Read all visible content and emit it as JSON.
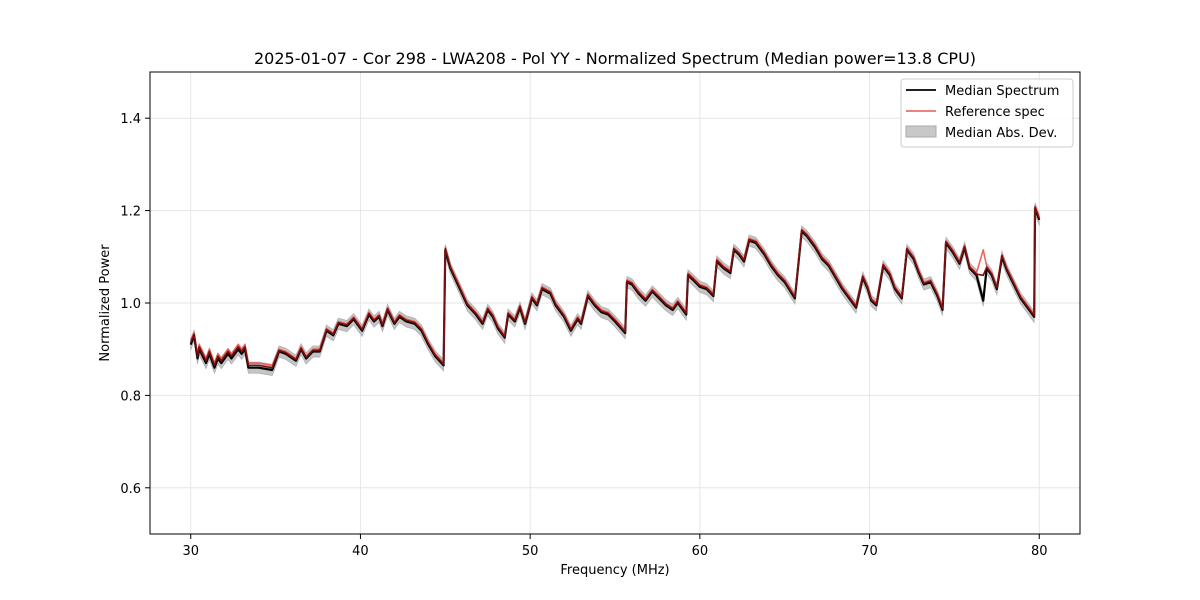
{
  "chart_data": {
    "type": "line",
    "title": "2025-01-07 - Cor 298 - LWA208 - Pol YY - Normalized Spectrum (Median power=13.8 CPU)",
    "xlabel": "Frequency (MHz)",
    "ylabel": "Normalized Power",
    "xlim": [
      27.6,
      82.4
    ],
    "ylim": [
      0.5,
      1.5
    ],
    "xticks": [
      30,
      40,
      50,
      60,
      70,
      80
    ],
    "yticks": [
      0.6,
      0.8,
      1.0,
      1.2,
      1.4
    ],
    "xtick_labels": [
      "30",
      "40",
      "50",
      "60",
      "70",
      "80"
    ],
    "ytick_labels": [
      "0.6",
      "0.8",
      "1.0",
      "1.2",
      "1.4"
    ],
    "grid": true,
    "legend_position": "top-right",
    "series": [
      {
        "name": "Median Spectrum",
        "color": "#000000",
        "x": [
          30.0,
          30.2,
          30.4,
          30.5,
          30.9,
          31.1,
          31.4,
          31.6,
          31.8,
          32.2,
          32.4,
          32.8,
          33.0,
          33.2,
          33.4,
          34.0,
          34.8,
          35.2,
          35.6,
          36.0,
          36.2,
          36.5,
          36.8,
          37.2,
          37.6,
          38.0,
          38.4,
          38.7,
          39.2,
          39.6,
          40.1,
          40.5,
          40.8,
          41.1,
          41.3,
          41.6,
          42.0,
          42.3,
          42.7,
          43.2,
          43.6,
          44.0,
          44.4,
          44.9,
          45.0,
          45.3,
          45.8,
          46.3,
          46.8,
          47.2,
          47.5,
          47.8,
          48.1,
          48.5,
          48.7,
          49.1,
          49.4,
          49.7,
          50.1,
          50.4,
          50.7,
          51.2,
          51.5,
          52.0,
          52.4,
          52.8,
          53.0,
          53.4,
          53.8,
          54.2,
          54.6,
          55.0,
          55.6,
          55.7,
          56.0,
          56.4,
          56.8,
          57.2,
          57.6,
          58.0,
          58.4,
          58.7,
          58.9,
          59.2,
          59.3,
          59.6,
          60.0,
          60.4,
          60.8,
          61.0,
          61.4,
          61.8,
          62.0,
          62.3,
          62.6,
          62.9,
          63.3,
          63.8,
          64.2,
          64.6,
          65.0,
          65.6,
          66.0,
          66.3,
          66.8,
          67.2,
          67.6,
          68.0,
          68.4,
          68.8,
          69.2,
          69.6,
          69.9,
          70.1,
          70.4,
          70.8,
          71.2,
          71.5,
          71.9,
          72.2,
          72.6,
          72.9,
          73.2,
          73.6,
          74.0,
          74.3,
          74.5,
          74.9,
          75.3,
          75.6,
          75.9,
          76.3,
          76.7,
          76.9,
          77.2,
          77.5,
          77.8,
          78.1,
          78.5,
          78.9,
          79.3,
          79.7,
          79.75,
          80.0
        ],
        "values": [
          0.91,
          0.93,
          0.88,
          0.9,
          0.87,
          0.89,
          0.86,
          0.88,
          0.87,
          0.89,
          0.88,
          0.9,
          0.89,
          0.9,
          0.86,
          0.86,
          0.855,
          0.895,
          0.89,
          0.88,
          0.875,
          0.9,
          0.88,
          0.895,
          0.895,
          0.94,
          0.93,
          0.955,
          0.95,
          0.965,
          0.94,
          0.975,
          0.96,
          0.97,
          0.95,
          0.985,
          0.955,
          0.97,
          0.96,
          0.955,
          0.94,
          0.91,
          0.885,
          0.865,
          1.115,
          1.075,
          1.035,
          0.995,
          0.975,
          0.955,
          0.985,
          0.97,
          0.945,
          0.925,
          0.975,
          0.96,
          0.99,
          0.955,
          1.01,
          0.995,
          1.03,
          1.02,
          0.995,
          0.97,
          0.94,
          0.965,
          0.955,
          1.015,
          0.995,
          0.98,
          0.975,
          0.96,
          0.935,
          1.045,
          1.04,
          1.02,
          1.005,
          1.025,
          1.01,
          0.995,
          0.985,
          1.0,
          0.99,
          0.975,
          1.06,
          1.05,
          1.035,
          1.03,
          1.015,
          1.09,
          1.075,
          1.065,
          1.115,
          1.105,
          1.09,
          1.135,
          1.13,
          1.105,
          1.08,
          1.06,
          1.045,
          1.01,
          1.155,
          1.145,
          1.12,
          1.095,
          1.08,
          1.055,
          1.03,
          1.01,
          0.99,
          1.055,
          1.03,
          1.005,
          0.995,
          1.08,
          1.06,
          1.03,
          1.01,
          1.115,
          1.095,
          1.065,
          1.04,
          1.045,
          1.015,
          0.985,
          1.13,
          1.11,
          1.085,
          1.12,
          1.075,
          1.06,
          1.005,
          1.075,
          1.06,
          1.03,
          1.1,
          1.07,
          1.04,
          1.01,
          0.99,
          0.97,
          1.205,
          1.18
        ]
      },
      {
        "name": "Reference spec",
        "color": "#e8584f",
        "x": [
          30.0,
          30.2,
          30.4,
          30.5,
          30.9,
          31.1,
          31.4,
          31.6,
          31.8,
          32.2,
          32.4,
          32.8,
          33.0,
          33.2,
          33.4,
          34.0,
          34.8,
          35.2,
          35.6,
          36.0,
          36.2,
          36.5,
          36.8,
          37.2,
          37.6,
          38.0,
          38.4,
          38.7,
          39.2,
          39.6,
          40.1,
          40.5,
          40.8,
          41.1,
          41.3,
          41.6,
          42.0,
          42.3,
          42.7,
          43.2,
          43.6,
          44.0,
          44.4,
          44.9,
          45.0,
          45.3,
          45.8,
          46.3,
          46.8,
          47.2,
          47.5,
          47.8,
          48.1,
          48.5,
          48.7,
          49.1,
          49.4,
          49.7,
          50.1,
          50.4,
          50.7,
          51.2,
          51.5,
          52.0,
          52.4,
          52.8,
          53.0,
          53.4,
          53.8,
          54.2,
          54.6,
          55.0,
          55.6,
          55.7,
          56.0,
          56.4,
          56.8,
          57.2,
          57.6,
          58.0,
          58.4,
          58.7,
          58.9,
          59.2,
          59.3,
          59.6,
          60.0,
          60.4,
          60.8,
          61.0,
          61.4,
          61.8,
          62.0,
          62.3,
          62.6,
          62.9,
          63.3,
          63.8,
          64.2,
          64.6,
          65.0,
          65.6,
          66.0,
          66.3,
          66.8,
          67.2,
          67.6,
          68.0,
          68.4,
          68.8,
          69.2,
          69.6,
          69.9,
          70.1,
          70.4,
          70.8,
          71.2,
          71.5,
          71.9,
          72.2,
          72.6,
          72.9,
          73.2,
          73.6,
          74.0,
          74.3,
          74.5,
          74.9,
          75.3,
          75.6,
          75.9,
          76.3,
          76.7,
          76.9,
          77.2,
          77.5,
          77.8,
          78.1,
          78.5,
          78.9,
          79.3,
          79.7,
          79.75,
          80.0
        ],
        "values": [
          0.92,
          0.935,
          0.89,
          0.91,
          0.88,
          0.9,
          0.87,
          0.89,
          0.88,
          0.9,
          0.89,
          0.91,
          0.9,
          0.91,
          0.87,
          0.87,
          0.865,
          0.9,
          0.895,
          0.885,
          0.88,
          0.905,
          0.885,
          0.9,
          0.9,
          0.945,
          0.935,
          0.96,
          0.955,
          0.97,
          0.945,
          0.98,
          0.965,
          0.975,
          0.955,
          0.99,
          0.96,
          0.975,
          0.965,
          0.96,
          0.945,
          0.915,
          0.89,
          0.87,
          1.12,
          1.08,
          1.04,
          1.0,
          0.98,
          0.96,
          0.99,
          0.975,
          0.95,
          0.93,
          0.98,
          0.965,
          0.995,
          0.96,
          1.015,
          1.0,
          1.035,
          1.025,
          1.0,
          0.975,
          0.945,
          0.97,
          0.96,
          1.02,
          1.0,
          0.985,
          0.98,
          0.965,
          0.94,
          1.05,
          1.045,
          1.025,
          1.01,
          1.03,
          1.015,
          1.0,
          0.99,
          1.005,
          0.995,
          0.98,
          1.065,
          1.055,
          1.04,
          1.035,
          1.02,
          1.095,
          1.08,
          1.07,
          1.12,
          1.11,
          1.095,
          1.14,
          1.135,
          1.11,
          1.085,
          1.065,
          1.05,
          1.015,
          1.16,
          1.15,
          1.125,
          1.1,
          1.085,
          1.06,
          1.035,
          1.015,
          0.995,
          1.06,
          1.035,
          1.01,
          1.0,
          1.085,
          1.065,
          1.035,
          1.015,
          1.12,
          1.1,
          1.07,
          1.045,
          1.05,
          1.02,
          0.99,
          1.135,
          1.115,
          1.09,
          1.125,
          1.08,
          1.065,
          1.115,
          1.08,
          1.065,
          1.035,
          1.105,
          1.075,
          1.045,
          1.015,
          0.995,
          0.975,
          1.21,
          1.185
        ]
      }
    ],
    "band": {
      "name": "Median Abs. Dev.",
      "color": "#999999",
      "half_width": 0.012
    }
  }
}
